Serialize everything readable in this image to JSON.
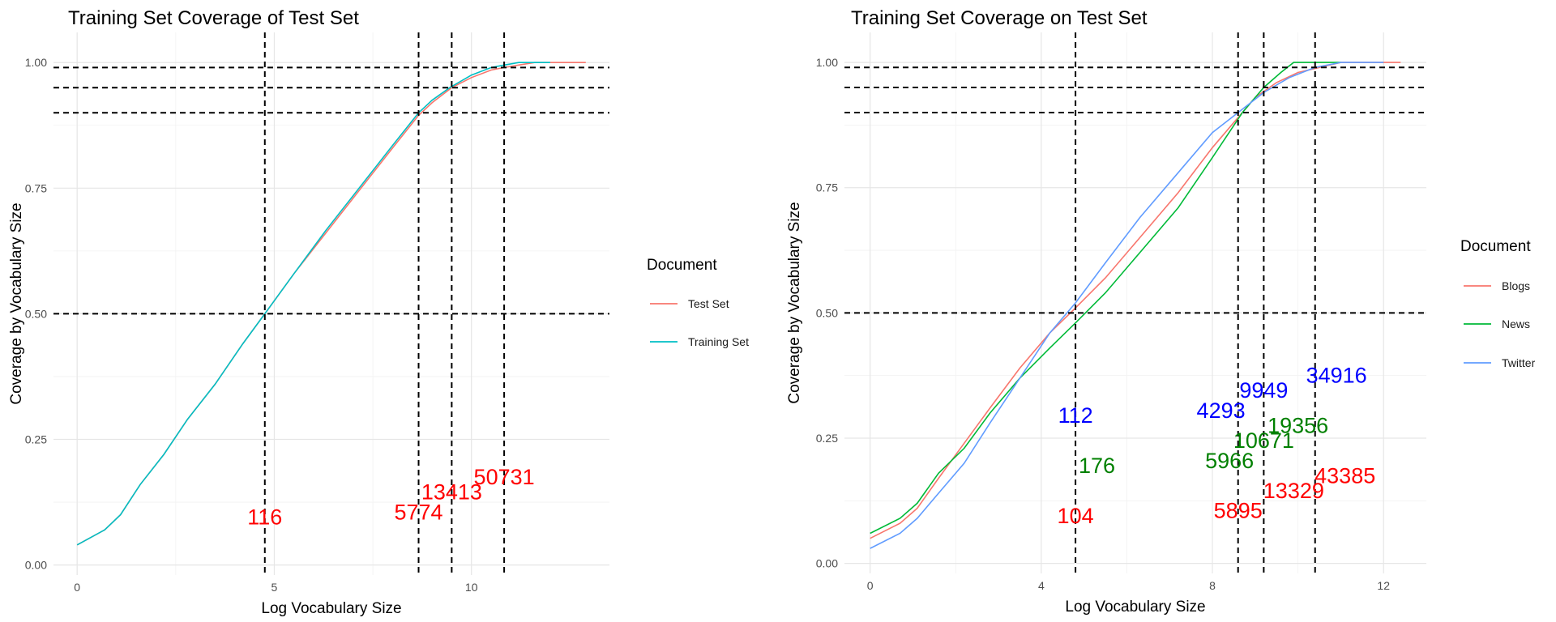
{
  "chart_data": [
    {
      "type": "line",
      "title": "Training Set Coverage of Test Set",
      "xlabel": "Log Vocabulary Size",
      "ylabel": "Coverage by Vocabulary Size",
      "xlim": [
        -0.6,
        13.5
      ],
      "ylim": [
        -0.02,
        1.06
      ],
      "x_ticks": [
        0,
        5,
        10
      ],
      "y_ticks": [
        0.0,
        0.25,
        0.5,
        0.75,
        1.0
      ],
      "y_tick_labels": [
        "0.00",
        "0.25",
        "0.50",
        "0.75",
        "1.00"
      ],
      "grid": true,
      "legend": {
        "title": "Document",
        "position": "right"
      },
      "series": [
        {
          "name": "Test Set",
          "color": "#F8766D",
          "x": [
            0,
            0.7,
            1.1,
            1.6,
            2.2,
            2.8,
            3.5,
            4.2,
            4.76,
            5.5,
            6.3,
            7.2,
            8.0,
            8.66,
            9.0,
            9.5,
            10.0,
            10.5,
            10.83,
            11.2,
            11.6,
            12.0,
            12.5,
            12.9
          ],
          "y": [
            0.04,
            0.07,
            0.1,
            0.16,
            0.22,
            0.29,
            0.36,
            0.44,
            0.5,
            0.58,
            0.66,
            0.75,
            0.83,
            0.895,
            0.92,
            0.95,
            0.97,
            0.985,
            0.99,
            0.995,
            1.0,
            1.0,
            1.0,
            1.0
          ]
        },
        {
          "name": "Training Set",
          "color": "#00BFC4",
          "x": [
            0,
            0.7,
            1.1,
            1.6,
            2.2,
            2.8,
            3.5,
            4.2,
            4.76,
            5.5,
            6.3,
            7.2,
            8.0,
            8.66,
            9.0,
            9.45,
            10.0,
            10.5,
            10.83,
            11.2,
            11.6,
            12.0
          ],
          "y": [
            0.04,
            0.07,
            0.1,
            0.16,
            0.22,
            0.29,
            0.36,
            0.44,
            0.5,
            0.58,
            0.665,
            0.755,
            0.835,
            0.9,
            0.925,
            0.95,
            0.975,
            0.99,
            0.995,
            1.0,
            1.0,
            1.0
          ]
        }
      ],
      "vlines": [
        4.76,
        8.66,
        9.5,
        10.83
      ],
      "hlines": [
        0.5,
        0.9,
        0.95,
        0.99
      ],
      "annotations": [
        {
          "text": "116",
          "x": 4.76,
          "y": 0.095,
          "color": "#FF0000"
        },
        {
          "text": "5774",
          "x": 8.66,
          "y": 0.105,
          "color": "#FF0000"
        },
        {
          "text": "13413",
          "x": 9.5,
          "y": 0.145,
          "color": "#FF0000"
        },
        {
          "text": "50731",
          "x": 10.83,
          "y": 0.175,
          "color": "#FF0000"
        }
      ]
    },
    {
      "type": "line",
      "title": "Training Set Coverage on Test Set",
      "xlabel": "Log Vocabulary Size",
      "ylabel": "Coverage by Vocabulary Size",
      "xlim": [
        -0.6,
        13.0
      ],
      "ylim": [
        -0.02,
        1.06
      ],
      "x_ticks": [
        0,
        4,
        8,
        12
      ],
      "y_ticks": [
        0.0,
        0.25,
        0.5,
        0.75,
        1.0
      ],
      "y_tick_labels": [
        "0.00",
        "0.25",
        "0.50",
        "0.75",
        "1.00"
      ],
      "grid": true,
      "legend": {
        "title": "Document",
        "position": "right"
      },
      "series": [
        {
          "name": "Blogs",
          "color": "#F8766D",
          "x": [
            0,
            0.7,
            1.1,
            1.6,
            2.2,
            2.8,
            3.5,
            4.2,
            4.8,
            5.5,
            6.3,
            7.2,
            8.0,
            8.6,
            9.0,
            9.5,
            10.0,
            10.5,
            11.0,
            11.5,
            12.0,
            12.4
          ],
          "y": [
            0.05,
            0.08,
            0.11,
            0.17,
            0.24,
            0.31,
            0.39,
            0.46,
            0.51,
            0.57,
            0.65,
            0.74,
            0.83,
            0.89,
            0.93,
            0.96,
            0.98,
            0.99,
            1.0,
            1.0,
            1.0,
            1.0
          ]
        },
        {
          "name": "News",
          "color": "#00BA38",
          "x": [
            0,
            0.7,
            1.1,
            1.6,
            2.2,
            2.8,
            3.5,
            4.2,
            4.8,
            5.5,
            6.3,
            7.2,
            8.0,
            8.7,
            9.2,
            9.6,
            9.9,
            10.2,
            10.6,
            11.0
          ],
          "y": [
            0.06,
            0.09,
            0.12,
            0.18,
            0.23,
            0.3,
            0.37,
            0.43,
            0.48,
            0.54,
            0.62,
            0.71,
            0.81,
            0.9,
            0.95,
            0.98,
            1.0,
            1.0,
            1.0,
            1.0
          ]
        },
        {
          "name": "Twitter",
          "color": "#619CFF",
          "x": [
            0,
            0.7,
            1.1,
            1.6,
            2.2,
            2.8,
            3.5,
            4.2,
            4.8,
            5.5,
            6.3,
            7.2,
            8.0,
            8.6,
            9.2,
            9.8,
            10.4,
            11.0,
            11.4,
            12.0
          ],
          "y": [
            0.03,
            0.06,
            0.09,
            0.14,
            0.2,
            0.28,
            0.37,
            0.46,
            0.52,
            0.6,
            0.69,
            0.78,
            0.86,
            0.9,
            0.94,
            0.97,
            0.99,
            1.0,
            1.0,
            1.0
          ]
        }
      ],
      "vlines": [
        4.8,
        8.6,
        9.2,
        10.4
      ],
      "hlines": [
        0.5,
        0.9,
        0.95,
        0.99
      ],
      "annotations": [
        {
          "text": "104",
          "x": 4.8,
          "y": 0.095,
          "color": "#FF0000"
        },
        {
          "text": "5895",
          "x": 8.6,
          "y": 0.105,
          "color": "#FF0000"
        },
        {
          "text": "13329",
          "x": 9.9,
          "y": 0.145,
          "color": "#FF0000"
        },
        {
          "text": "43385",
          "x": 11.1,
          "y": 0.175,
          "color": "#FF0000"
        },
        {
          "text": "176",
          "x": 5.3,
          "y": 0.195,
          "color": "#008000"
        },
        {
          "text": "5966",
          "x": 8.4,
          "y": 0.205,
          "color": "#008000"
        },
        {
          "text": "10671",
          "x": 9.2,
          "y": 0.245,
          "color": "#008000"
        },
        {
          "text": "19356",
          "x": 10.0,
          "y": 0.275,
          "color": "#008000"
        },
        {
          "text": "112",
          "x": 4.8,
          "y": 0.295,
          "color": "#0000FF"
        },
        {
          "text": "4293",
          "x": 8.2,
          "y": 0.305,
          "color": "#0000FF"
        },
        {
          "text": "9949",
          "x": 9.2,
          "y": 0.345,
          "color": "#0000FF"
        },
        {
          "text": "34916",
          "x": 10.9,
          "y": 0.375,
          "color": "#0000FF"
        }
      ]
    }
  ]
}
